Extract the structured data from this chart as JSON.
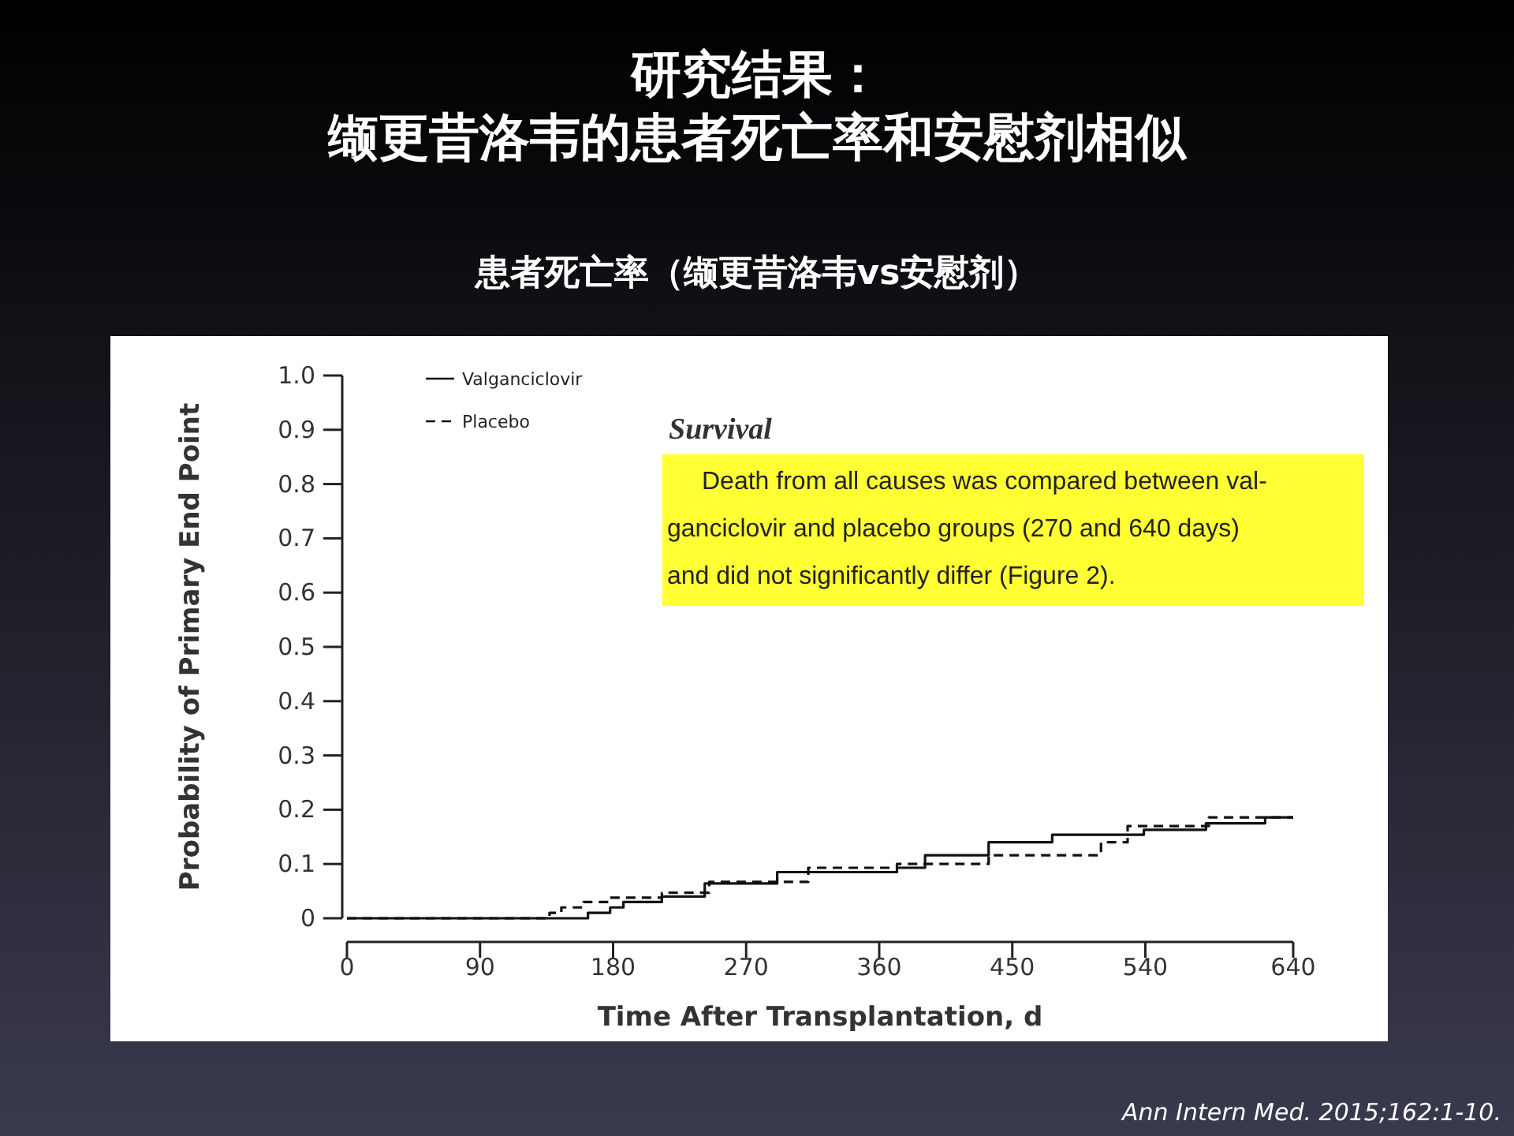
{
  "chart_data": {
    "type": "step",
    "title": "研究结果：缬更昔洛韦的患者死亡率和安慰剂相似",
    "subtitle": "患者死亡率（缬更昔洛韦vs安慰剂）",
    "xlabel": "Time After Transplantation, d",
    "ylabel": "Probability of Primary End Point",
    "xlim": [
      0,
      640
    ],
    "xticks": [
      0,
      90,
      180,
      270,
      360,
      450,
      540,
      640
    ],
    "ylim": [
      0,
      1
    ],
    "yticks": [
      {
        "value": 0,
        "label": "0"
      },
      {
        "value": 0.1,
        "label": "0.1"
      },
      {
        "value": 0.2,
        "label": "0.2"
      },
      {
        "value": 0.3,
        "label": "0.3"
      },
      {
        "value": 0.4,
        "label": "0.4"
      },
      {
        "value": 0.5,
        "label": "0.5"
      },
      {
        "value": 0.6,
        "label": "0.6"
      },
      {
        "value": 0.7,
        "label": "0.7"
      },
      {
        "value": 0.8,
        "label": "0.8"
      },
      {
        "value": 0.9,
        "label": "0.9"
      },
      {
        "value": 1,
        "label": "1.0"
      }
    ],
    "legend": "top left",
    "grid": false,
    "series": [
      {
        "name": "Valganciclovir",
        "color": "#111111",
        "line_style": "solid",
        "x": [
          0,
          163,
          178,
          187,
          213,
          242,
          291,
          372,
          391,
          434,
          477,
          539,
          581,
          621,
          640
        ],
        "values": [
          0,
          0.01,
          0.02,
          0.03,
          0.04,
          0.064,
          0.085,
          0.093,
          0.116,
          0.14,
          0.154,
          0.163,
          0.175,
          0.186,
          0.186
        ]
      },
      {
        "name": "Placebo",
        "color": "#111111",
        "line_style": "dashed",
        "x": [
          0,
          137,
          145,
          160,
          178,
          213,
          245,
          312,
          372,
          434,
          496,
          510,
          528,
          583,
          640
        ],
        "values": [
          0,
          0.01,
          0.02,
          0.03,
          0.038,
          0.047,
          0.067,
          0.093,
          0.1,
          0.116,
          0.116,
          0.14,
          0.17,
          0.186,
          0.186
        ]
      }
    ],
    "annotations": [
      "Survival",
      "Death from all causes was compared between val-ganciclovir and placebo groups (270 and 640 days) and did not significantly differ (Figure 2).",
      "Ann Intern Med. 2015;162:1-10."
    ]
  }
}
